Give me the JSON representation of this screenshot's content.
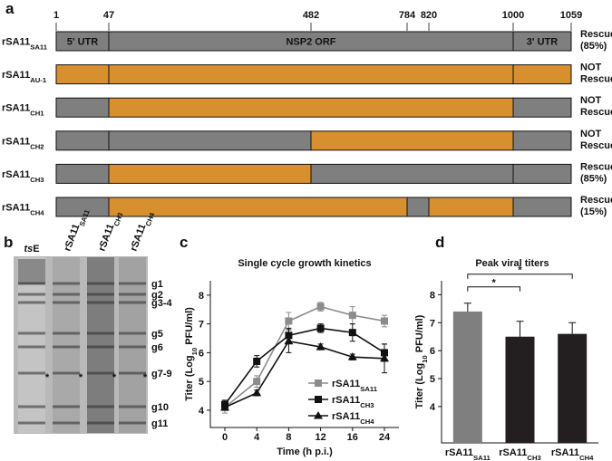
{
  "panel_a": {
    "label": "a",
    "positions": [
      1,
      47,
      482,
      784,
      820,
      1000,
      1059
    ],
    "regions": [
      {
        "text": "5' UTR",
        "from": 1,
        "to": 47
      },
      {
        "text": "NSP2 ORF",
        "from": 47,
        "to": 1000
      },
      {
        "text": "3' UTR",
        "from": 1000,
        "to": 1059
      }
    ],
    "colors": {
      "SA11": "#7f7f7f",
      "AU-1": "#d8902f"
    },
    "constructs": [
      {
        "name": "rSA11",
        "sub": "SA11",
        "status": [
          "Rescued",
          "(85%)"
        ],
        "segments": [
          {
            "from": 1,
            "to": 47,
            "source": "SA11"
          },
          {
            "from": 47,
            "to": 1000,
            "source": "SA11"
          },
          {
            "from": 1000,
            "to": 1059,
            "source": "SA11"
          }
        ]
      },
      {
        "name": "rSA11",
        "sub": "AU-1",
        "status": [
          "NOT",
          "Rescued"
        ],
        "segments": [
          {
            "from": 1,
            "to": 47,
            "source": "AU-1"
          },
          {
            "from": 47,
            "to": 1000,
            "source": "AU-1"
          },
          {
            "from": 1000,
            "to": 1059,
            "source": "AU-1"
          }
        ]
      },
      {
        "name": "rSA11",
        "sub": "CH1",
        "status": [
          "NOT",
          "Rescued"
        ],
        "segments": [
          {
            "from": 1,
            "to": 47,
            "source": "SA11"
          },
          {
            "from": 47,
            "to": 1000,
            "source": "AU-1"
          },
          {
            "from": 1000,
            "to": 1059,
            "source": "SA11"
          }
        ]
      },
      {
        "name": "rSA11",
        "sub": "CH2",
        "status": [
          "NOT",
          "Rescued"
        ],
        "segments": [
          {
            "from": 1,
            "to": 47,
            "source": "SA11"
          },
          {
            "from": 47,
            "to": 482,
            "source": "SA11"
          },
          {
            "from": 482,
            "to": 1000,
            "source": "AU-1"
          },
          {
            "from": 1000,
            "to": 1059,
            "source": "SA11"
          }
        ]
      },
      {
        "name": "rSA11",
        "sub": "CH3",
        "status": [
          "Rescued",
          "(85%)"
        ],
        "segments": [
          {
            "from": 1,
            "to": 47,
            "source": "SA11"
          },
          {
            "from": 47,
            "to": 482,
            "source": "AU-1"
          },
          {
            "from": 482,
            "to": 1000,
            "source": "SA11"
          },
          {
            "from": 1000,
            "to": 1059,
            "source": "SA11"
          }
        ]
      },
      {
        "name": "rSA11",
        "sub": "CH4",
        "status": [
          "Rescued",
          "(15%)"
        ],
        "segments": [
          {
            "from": 1,
            "to": 47,
            "source": "SA11"
          },
          {
            "from": 47,
            "to": 784,
            "source": "AU-1"
          },
          {
            "from": 784,
            "to": 820,
            "source": "SA11"
          },
          {
            "from": 820,
            "to": 1000,
            "source": "AU-1"
          },
          {
            "from": 1000,
            "to": 1059,
            "source": "SA11"
          }
        ]
      }
    ]
  },
  "panel_b": {
    "label": "b",
    "lanes": [
      {
        "italic": "ts",
        "text": "E"
      },
      {
        "text": "rSA11",
        "sub": "SA11"
      },
      {
        "text": "rSA11",
        "sub": "CH3"
      },
      {
        "text": "rSA11",
        "sub": "CH4"
      }
    ],
    "bands": [
      "g1",
      "g2",
      "g3-4",
      "g5",
      "g6",
      "g7-9",
      "g10",
      "g11"
    ],
    "marker": "*"
  },
  "chart_data": [
    {
      "type": "line",
      "label": "c",
      "title": "Single cycle growth kinetics",
      "x_label": "Time (h p.i.)",
      "y_label": "Titer (Log",
      "y_label_sub": "10",
      "y_label_end": " PFU/ml)",
      "categories": [
        "0",
        "4",
        "8",
        "12",
        "16",
        "24"
      ],
      "ylim": [
        3.4,
        8.5
      ],
      "yticks": [
        4,
        5,
        6,
        7,
        8
      ],
      "series": [
        {
          "name": "rSA11",
          "name_sub": "SA11",
          "color": "#8c8c8c",
          "marker": "square",
          "values": [
            4.1,
            5.0,
            7.1,
            7.6,
            7.3,
            7.1
          ],
          "errors": [
            0.2,
            0.2,
            0.3,
            0.15,
            0.3,
            0.2
          ]
        },
        {
          "name": "rSA11",
          "name_sub": "CH3",
          "color": "#111111",
          "marker": "square",
          "values": [
            4.2,
            5.7,
            6.6,
            6.85,
            6.7,
            6.0
          ],
          "errors": [
            0.15,
            0.2,
            0.25,
            0.15,
            0.3,
            0.3
          ]
        },
        {
          "name": "rSA11",
          "name_sub": "CH4",
          "color": "#111111",
          "marker": "triangle",
          "values": [
            4.1,
            4.6,
            6.4,
            6.2,
            5.85,
            5.8
          ],
          "errors": [
            0.1,
            0.1,
            0.4,
            0.1,
            0.1,
            0.5
          ]
        }
      ]
    },
    {
      "type": "bar",
      "label": "d",
      "title": "Peak viral titers",
      "y_label": "Titer (Log",
      "y_label_sub": "10",
      "y_label_end": " PFU/ml)",
      "categories": [
        {
          "text": "rSA11",
          "sub": "SA11"
        },
        {
          "text": "rSA11",
          "sub": "CH3"
        },
        {
          "text": "rSA11",
          "sub": "CH4"
        }
      ],
      "values": [
        7.4,
        6.5,
        6.6
      ],
      "errors": [
        0.3,
        0.55,
        0.4
      ],
      "colors": [
        "#7f7f7f",
        "#231f20",
        "#231f20"
      ],
      "ylim": [
        2.7,
        8.5
      ],
      "yticks": [
        4,
        5,
        6,
        7,
        8
      ],
      "significance": [
        {
          "from": 0,
          "to": 1,
          "label": "*"
        },
        {
          "from": 0,
          "to": 2,
          "label": "*"
        }
      ]
    }
  ]
}
